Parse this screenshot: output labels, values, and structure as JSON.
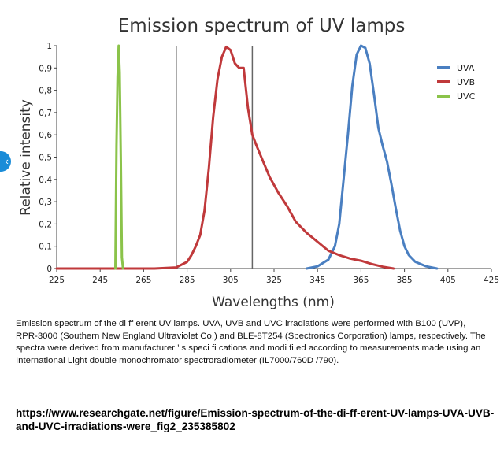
{
  "nav": {
    "side_tab_glyph": "‹",
    "side_tab_icon": "chevron-left-icon"
  },
  "chart_data": {
    "type": "line",
    "title": "Emission spectrum of UV lamps",
    "xlabel": "Wavelengths (nm)",
    "ylabel": "Relative intensity",
    "xlim": [
      225,
      425
    ],
    "ylim": [
      0,
      1
    ],
    "x_ticks": [
      225,
      245,
      265,
      285,
      305,
      325,
      345,
      365,
      385,
      405,
      425
    ],
    "y_ticks": [
      {
        "value": 0,
        "label": "0"
      },
      {
        "value": 0.1,
        "label": "0,1"
      },
      {
        "value": 0.2,
        "label": "0,2"
      },
      {
        "value": 0.3,
        "label": "0,3"
      },
      {
        "value": 0.4,
        "label": "0,4"
      },
      {
        "value": 0.5,
        "label": "0,5"
      },
      {
        "value": 0.6,
        "label": "0,6"
      },
      {
        "value": 0.7,
        "label": "0,7"
      },
      {
        "value": 0.8,
        "label": "0,8"
      },
      {
        "value": 0.9,
        "label": "0,9"
      },
      {
        "value": 1,
        "label": "1"
      }
    ],
    "reference_lines_x": [
      280,
      315
    ],
    "grid": false,
    "legend_position": "top-right",
    "series": [
      {
        "name": "UVA",
        "color": "#4a7fc1",
        "points": [
          [
            340,
            0
          ],
          [
            345,
            0.01
          ],
          [
            350,
            0.04
          ],
          [
            353,
            0.1
          ],
          [
            355,
            0.2
          ],
          [
            357,
            0.4
          ],
          [
            359,
            0.6
          ],
          [
            361,
            0.82
          ],
          [
            363,
            0.96
          ],
          [
            365,
            1.0
          ],
          [
            367,
            0.99
          ],
          [
            369,
            0.92
          ],
          [
            371,
            0.78
          ],
          [
            373,
            0.63
          ],
          [
            375,
            0.55
          ],
          [
            377,
            0.48
          ],
          [
            379,
            0.38
          ],
          [
            381,
            0.27
          ],
          [
            383,
            0.17
          ],
          [
            385,
            0.1
          ],
          [
            387,
            0.06
          ],
          [
            390,
            0.03
          ],
          [
            395,
            0.01
          ],
          [
            400,
            0
          ]
        ]
      },
      {
        "name": "UVB",
        "color": "#c0393b",
        "points": [
          [
            225,
            0
          ],
          [
            270,
            0
          ],
          [
            280,
            0.005
          ],
          [
            285,
            0.03
          ],
          [
            287,
            0.06
          ],
          [
            289,
            0.1
          ],
          [
            291,
            0.15
          ],
          [
            293,
            0.26
          ],
          [
            295,
            0.45
          ],
          [
            297,
            0.68
          ],
          [
            299,
            0.85
          ],
          [
            301,
            0.95
          ],
          [
            303,
            0.995
          ],
          [
            305,
            0.98
          ],
          [
            307,
            0.92
          ],
          [
            309,
            0.9
          ],
          [
            311,
            0.9
          ],
          [
            313,
            0.72
          ],
          [
            315,
            0.6
          ],
          [
            317,
            0.55
          ],
          [
            320,
            0.48
          ],
          [
            323,
            0.41
          ],
          [
            327,
            0.34
          ],
          [
            331,
            0.28
          ],
          [
            335,
            0.21
          ],
          [
            340,
            0.16
          ],
          [
            345,
            0.12
          ],
          [
            350,
            0.08
          ],
          [
            355,
            0.06
          ],
          [
            360,
            0.045
          ],
          [
            365,
            0.035
          ],
          [
            370,
            0.02
          ],
          [
            375,
            0.008
          ],
          [
            380,
            0
          ]
        ]
      },
      {
        "name": "UVC",
        "color": "#8bc34a",
        "points": [
          [
            252,
            0
          ],
          [
            252.5,
            0.55
          ],
          [
            253,
            0.86
          ],
          [
            253.5,
            1.0
          ],
          [
            254,
            0.88
          ],
          [
            254.5,
            0.5
          ],
          [
            255,
            0.05
          ],
          [
            255.5,
            0
          ]
        ]
      }
    ]
  },
  "caption": {
    "text": "Emission spectrum of the di ff erent UV lamps. UVA, UVB and UVC irradiations were performed with B100 (UVP), RPR-3000 (Southern New England Ultraviolet Co.) and BLE-8T254 (Spectronics Corporation) lamps, respectively. The spectra were derived from manufacturer ’ s speci fi cations and modi fi ed according to measurements made using an International Light double monochromator spectroradiometer (IL7000/760D /790)."
  },
  "source": {
    "url": "https://www.researchgate.net/figure/Emission-spectrum-of-the-di-ff-erent-UV-lamps-UVA-UVB-and-UVC-irradiations-were_fig2_235385802"
  }
}
